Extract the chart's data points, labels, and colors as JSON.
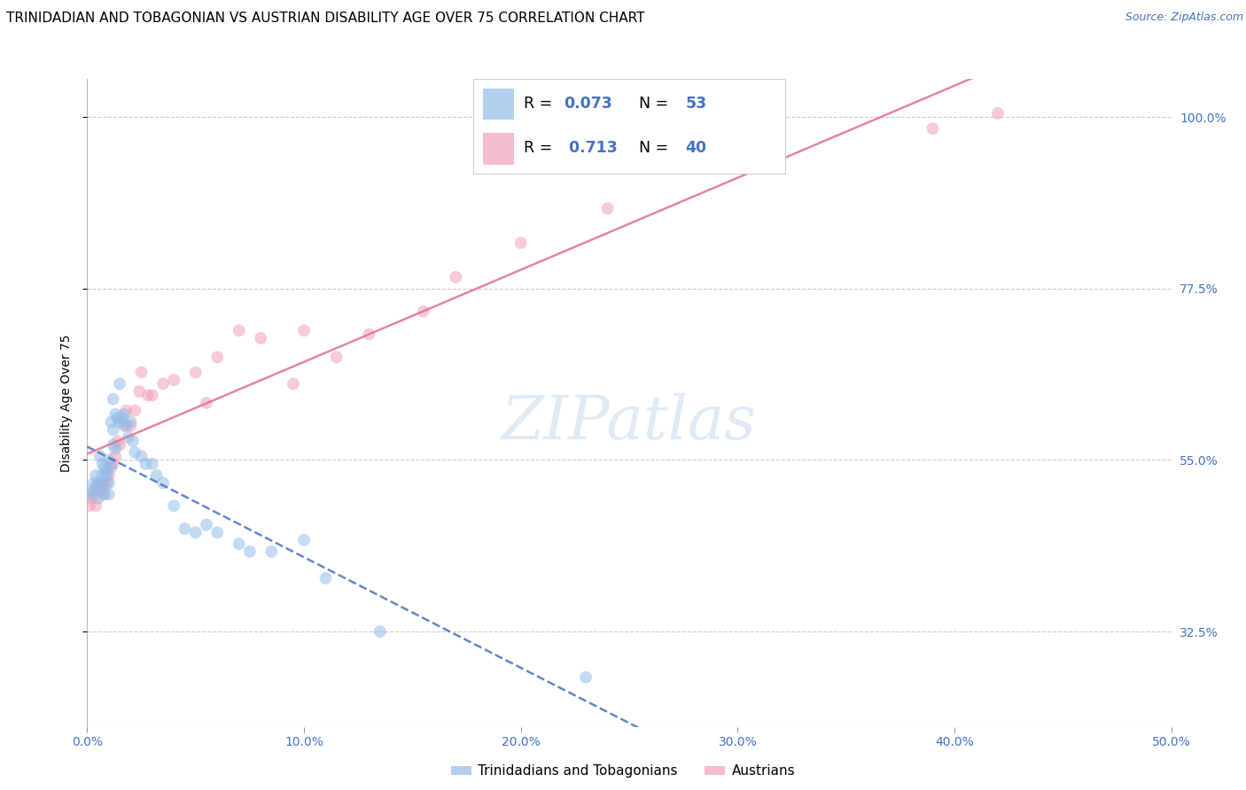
{
  "title": "TRINIDADIAN AND TOBAGONIAN VS AUSTRIAN DISABILITY AGE OVER 75 CORRELATION CHART",
  "source": "Source: ZipAtlas.com",
  "ylabel": "Disability Age Over 75",
  "ytick_labels": [
    "100.0%",
    "77.5%",
    "55.0%",
    "32.5%"
  ],
  "ytick_vals": [
    1.0,
    0.775,
    0.55,
    0.325
  ],
  "watermark": "ZIPatlas",
  "series1_label": "Trinidadians and Tobagonians",
  "series2_label": "Austrians",
  "series1_color": "#92bce8",
  "series2_color": "#f2a0b8",
  "series1_line_color": "#4472C4",
  "series2_line_color": "#E07090",
  "R1": 0.073,
  "N1": 53,
  "R2": 0.713,
  "N2": 40,
  "blue_x": [
    0.001,
    0.002,
    0.003,
    0.004,
    0.004,
    0.005,
    0.005,
    0.006,
    0.006,
    0.007,
    0.007,
    0.007,
    0.008,
    0.008,
    0.009,
    0.009,
    0.01,
    0.01,
    0.01,
    0.011,
    0.011,
    0.012,
    0.012,
    0.012,
    0.013,
    0.013,
    0.014,
    0.015,
    0.015,
    0.016,
    0.017,
    0.018,
    0.019,
    0.02,
    0.021,
    0.022,
    0.025,
    0.027,
    0.03,
    0.032,
    0.035,
    0.04,
    0.045,
    0.05,
    0.055,
    0.06,
    0.07,
    0.075,
    0.085,
    0.1,
    0.11,
    0.135,
    0.23
  ],
  "blue_y": [
    0.505,
    0.51,
    0.52,
    0.515,
    0.53,
    0.5,
    0.52,
    0.51,
    0.555,
    0.52,
    0.53,
    0.545,
    0.505,
    0.54,
    0.53,
    0.535,
    0.55,
    0.52,
    0.505,
    0.54,
    0.6,
    0.63,
    0.57,
    0.59,
    0.565,
    0.61,
    0.605,
    0.65,
    0.6,
    0.605,
    0.61,
    0.595,
    0.58,
    0.6,
    0.575,
    0.56,
    0.555,
    0.545,
    0.545,
    0.53,
    0.52,
    0.49,
    0.46,
    0.455,
    0.465,
    0.455,
    0.44,
    0.43,
    0.43,
    0.445,
    0.395,
    0.325,
    0.265
  ],
  "pink_x": [
    0.001,
    0.002,
    0.003,
    0.004,
    0.005,
    0.006,
    0.007,
    0.008,
    0.009,
    0.01,
    0.011,
    0.012,
    0.013,
    0.014,
    0.015,
    0.017,
    0.018,
    0.02,
    0.022,
    0.024,
    0.025,
    0.028,
    0.03,
    0.035,
    0.04,
    0.05,
    0.055,
    0.06,
    0.07,
    0.08,
    0.095,
    0.1,
    0.115,
    0.13,
    0.155,
    0.17,
    0.2,
    0.24,
    0.39,
    0.42
  ],
  "pink_y": [
    0.49,
    0.5,
    0.505,
    0.49,
    0.515,
    0.52,
    0.505,
    0.515,
    0.52,
    0.53,
    0.545,
    0.545,
    0.555,
    0.575,
    0.57,
    0.595,
    0.615,
    0.595,
    0.615,
    0.64,
    0.665,
    0.635,
    0.635,
    0.65,
    0.655,
    0.665,
    0.625,
    0.685,
    0.72,
    0.71,
    0.65,
    0.72,
    0.685,
    0.715,
    0.745,
    0.79,
    0.835,
    0.88,
    0.985,
    1.005
  ],
  "xmin": 0.0,
  "xmax": 0.5,
  "ymin": 0.2,
  "ymax": 1.05,
  "xtick_vals": [
    0.0,
    0.1,
    0.2,
    0.3,
    0.4,
    0.5
  ],
  "xtick_labels": [
    "0.0%",
    "10.0%",
    "20.0%",
    "30.0%",
    "40.0%",
    "50.0%"
  ],
  "grid_color": "#cccccc",
  "background_color": "#ffffff",
  "title_fontsize": 11,
  "axis_label_fontsize": 10,
  "tick_fontsize": 10,
  "marker_size": 100,
  "marker_alpha": 0.55
}
